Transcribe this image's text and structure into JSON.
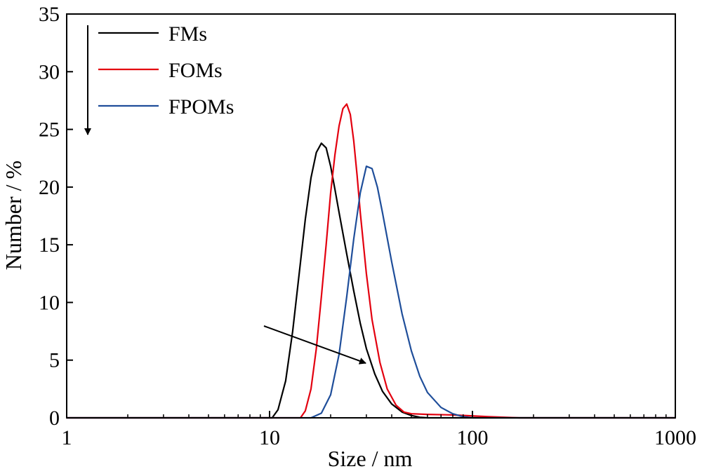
{
  "chart_data": {
    "type": "line",
    "title": "",
    "xlabel": "Size / nm",
    "ylabel": "Number / %",
    "x_scale": "log",
    "xlim": [
      1,
      1000
    ],
    "ylim": [
      0,
      35
    ],
    "x_ticks": [
      "1",
      "10",
      "100",
      "1000"
    ],
    "y_ticks": [
      "0",
      "5",
      "10",
      "15",
      "20",
      "25",
      "30",
      "35"
    ],
    "grid": false,
    "legend_position": "top-left",
    "annotations": [
      {
        "type": "arrow",
        "direction": "down",
        "note": "down arrow beside the legend"
      },
      {
        "type": "arrow",
        "direction": "right-down",
        "note": "diagonal arrow across the right flanks of the peaks"
      }
    ],
    "series": [
      {
        "name": "FMs",
        "color": "#000000",
        "x": [
          1,
          10.3,
          11,
          12,
          13,
          14,
          15,
          16,
          17,
          18,
          19,
          20,
          21,
          22,
          24,
          26,
          28,
          30,
          33,
          36,
          40,
          45,
          50,
          55,
          60,
          1000
        ],
        "y": [
          0,
          0,
          0.7,
          3.2,
          7.5,
          12.5,
          17.2,
          20.8,
          23.0,
          23.8,
          23.4,
          21.8,
          19.8,
          17.8,
          14.2,
          11.0,
          8.2,
          6.0,
          3.8,
          2.3,
          1.2,
          0.5,
          0.2,
          0.05,
          0,
          0
        ]
      },
      {
        "name": "FOMs",
        "color": "#e3000f",
        "x": [
          1,
          14.2,
          15,
          16,
          17,
          18,
          19,
          20,
          21,
          22,
          23,
          24,
          25,
          26,
          27,
          28,
          30,
          32,
          35,
          38,
          42,
          46,
          50,
          60,
          80,
          120,
          170,
          1000
        ],
        "y": [
          0,
          0,
          0.6,
          2.5,
          6.0,
          10.5,
          15.0,
          19.5,
          22.8,
          25.3,
          26.8,
          27.2,
          26.3,
          24.0,
          21.0,
          17.8,
          12.5,
          8.5,
          4.8,
          2.5,
          1.1,
          0.5,
          0.35,
          0.3,
          0.25,
          0.1,
          0,
          0
        ]
      },
      {
        "name": "FPOMs",
        "color": "#1f4e9a",
        "x": [
          1,
          16,
          18,
          20,
          22,
          24,
          26,
          28,
          30,
          32,
          34,
          36,
          40,
          45,
          50,
          55,
          60,
          70,
          80,
          90,
          100,
          1000
        ],
        "y": [
          0,
          0,
          0.4,
          2.0,
          5.5,
          10.5,
          15.5,
          19.5,
          21.8,
          21.6,
          20.0,
          17.8,
          13.5,
          9.0,
          5.8,
          3.6,
          2.2,
          0.9,
          0.35,
          0.1,
          0,
          0
        ]
      }
    ]
  }
}
